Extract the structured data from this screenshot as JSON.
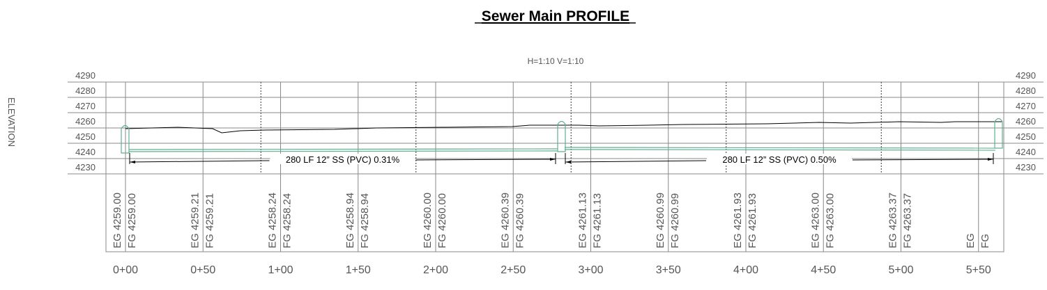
{
  "title": "Sewer Main PROFILE",
  "scale": "H=1:10  V=1:10",
  "axis_label": "ELEVATION",
  "elevations": [
    4290,
    4280,
    4270,
    4260,
    4250,
    4240,
    4230
  ],
  "stations": [
    {
      "label": "0+00",
      "eg": "EG  4259.00",
      "fg": "FG  4259.00"
    },
    {
      "label": "0+50",
      "eg": "EG  4259.21",
      "fg": "FG  4259.21"
    },
    {
      "label": "1+00",
      "eg": "EG  4258.24",
      "fg": "FG  4258.24"
    },
    {
      "label": "1+50",
      "eg": "EG  4258.94",
      "fg": "FG  4258.94"
    },
    {
      "label": "2+00",
      "eg": "EG  4260.00",
      "fg": "FG  4260.00"
    },
    {
      "label": "2+50",
      "eg": "EG  4260.39",
      "fg": "FG  4260.39"
    },
    {
      "label": "3+00",
      "eg": "EG  4261.13",
      "fg": "FG  4261.13"
    },
    {
      "label": "3+50",
      "eg": "EG  4260.99",
      "fg": "FG  4260.99"
    },
    {
      "label": "4+00",
      "eg": "EG  4261.93",
      "fg": "FG  4261.93"
    },
    {
      "label": "4+50",
      "eg": "EG  4263.00",
      "fg": "FG  4263.00"
    },
    {
      "label": "5+00",
      "eg": "EG  4263.37",
      "fg": "FG  4263.37"
    },
    {
      "label": "5+50",
      "eg": "EG",
      "fg": "FG"
    }
  ],
  "pipes": [
    "280 LF 12” SS (PVC) 0.31%",
    "280 LF 12” SS (PVC) 0.50%"
  ]
}
